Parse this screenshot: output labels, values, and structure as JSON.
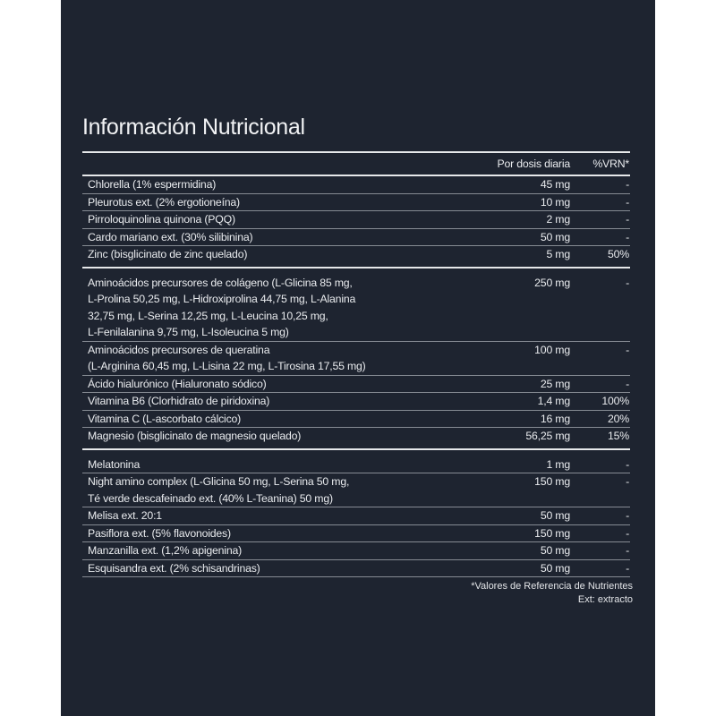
{
  "title": "Información Nutricional",
  "header": {
    "dose": "Por dosis diaria",
    "vrn": "%VRN*"
  },
  "groups": [
    {
      "rows": [
        {
          "name": [
            "Chlorella (1% espermidina)"
          ],
          "dose": "45 mg",
          "vrn": "-"
        },
        {
          "name": [
            "Pleurotus ext. (2% ergotioneína)"
          ],
          "dose": "10 mg",
          "vrn": "-"
        },
        {
          "name": [
            "Pirroloquinolina quinona (PQQ)"
          ],
          "dose": "2 mg",
          "vrn": "-"
        },
        {
          "name": [
            "Cardo mariano ext. (30% silibinina)"
          ],
          "dose": "50 mg",
          "vrn": "-"
        },
        {
          "name": [
            "Zinc (bisglicinato de zinc quelado)"
          ],
          "dose": "5 mg",
          "vrn": "50%"
        }
      ]
    },
    {
      "rows": [
        {
          "name": [
            "Aminoácidos precursores de colágeno (L-Glicina 85 mg,",
            "L-Prolina 50,25 mg, L-Hidroxiprolina 44,75 mg, L-Alanina",
            "32,75 mg, L-Serina 12,25 mg, L-Leucina 10,25 mg,",
            "L-Fenilalanina 9,75 mg, L-Isoleucina 5 mg)"
          ],
          "dose": "250 mg",
          "vrn": "-"
        },
        {
          "name": [
            "Aminoácidos precursores de queratina",
            "(L-Arginina 60,45 mg, L-Lisina 22 mg, L-Tirosina 17,55 mg)"
          ],
          "dose": "100 mg",
          "vrn": "-"
        },
        {
          "name": [
            "Ácido hialurónico (Hialuronato sódico)"
          ],
          "dose": "25 mg",
          "vrn": "-"
        },
        {
          "name": [
            "Vitamina B6 (Clorhidrato de piridoxina)"
          ],
          "dose": "1,4 mg",
          "vrn": "100%"
        },
        {
          "name": [
            "Vitamina C (L-ascorbato cálcico)"
          ],
          "dose": "16 mg",
          "vrn": "20%"
        },
        {
          "name": [
            "Magnesio (bisglicinato de magnesio quelado)"
          ],
          "dose": "56,25 mg",
          "vrn": "15%"
        }
      ]
    },
    {
      "rows": [
        {
          "name": [
            "Melatonina"
          ],
          "dose": "1 mg",
          "vrn": "-"
        },
        {
          "name": [
            "Night amino complex (L-Glicina 50 mg, L-Serina 50 mg,",
            "Té verde descafeinado ext. (40% L-Teanina) 50 mg)"
          ],
          "dose": "150 mg",
          "vrn": "-"
        },
        {
          "name": [
            "Melisa ext. 20:1"
          ],
          "dose": "50 mg",
          "vrn": "-"
        },
        {
          "name": [
            "Pasiflora ext. (5% flavonoides)"
          ],
          "dose": "150 mg",
          "vrn": "-"
        },
        {
          "name": [
            "Manzanilla ext. (1,2% apigenina)"
          ],
          "dose": "50 mg",
          "vrn": "-"
        },
        {
          "name": [
            "Esquisandra ext. (2% schisandrinas)"
          ],
          "dose": "50 mg",
          "vrn": "-"
        }
      ]
    }
  ],
  "footnotes": [
    "*Valores de Referencia de Nutrientes",
    "Ext: extracto"
  ]
}
